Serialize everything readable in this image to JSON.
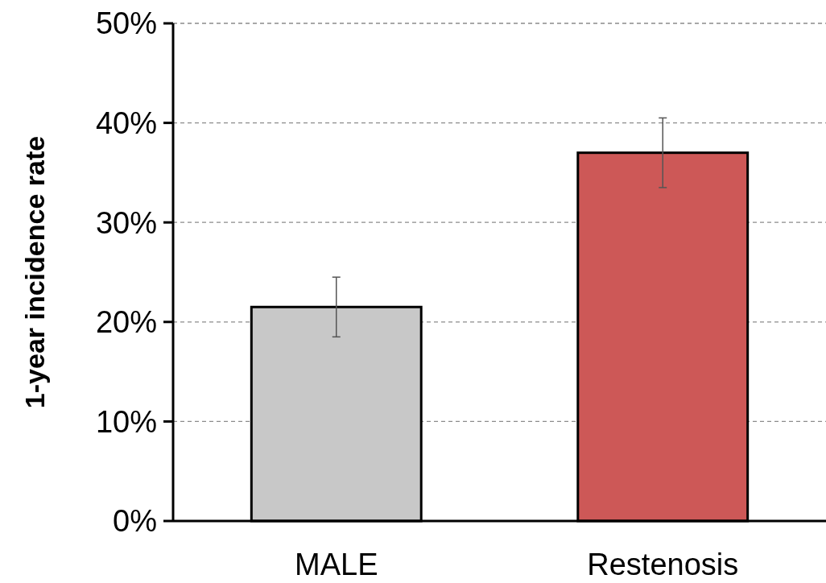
{
  "chart_data": {
    "type": "bar",
    "ylabel": "1-year incidence rate",
    "categories": [
      "MALE",
      "Restenosis"
    ],
    "values": [
      21.5,
      37
    ],
    "colors": [
      "#c8c8c8",
      "#cd5857"
    ],
    "errors": [
      [
        18.5,
        24.5
      ],
      [
        33.5,
        40.5
      ]
    ],
    "ylim": [
      0,
      50
    ],
    "yticks": [
      {
        "value": 0,
        "label": "0%"
      },
      {
        "value": 10,
        "label": "10%"
      },
      {
        "value": 20,
        "label": "20%"
      },
      {
        "value": 30,
        "label": "30%"
      },
      {
        "value": 40,
        "label": "40%"
      },
      {
        "value": 50,
        "label": "50%"
      }
    ],
    "grid": "y"
  }
}
